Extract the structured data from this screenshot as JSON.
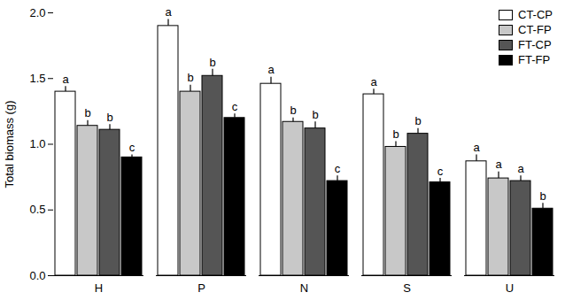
{
  "chart_data": {
    "type": "bar",
    "y_label": "Total biomass (g)",
    "categories": [
      "H",
      "P",
      "N",
      "S",
      "U"
    ],
    "series": [
      {
        "name": "CT-CP",
        "color": "#ffffff",
        "values": [
          1.4,
          1.9,
          1.46,
          1.38,
          0.87
        ],
        "error": [
          0.04,
          0.05,
          0.05,
          0.04,
          0.05
        ],
        "letters": [
          "a",
          "a",
          "a",
          "a",
          "a"
        ]
      },
      {
        "name": "CT-FP",
        "color": "#c8c8c8",
        "values": [
          1.14,
          1.4,
          1.17,
          0.98,
          0.74
        ],
        "error": [
          0.04,
          0.05,
          0.03,
          0.04,
          0.05
        ],
        "letters": [
          "b",
          "b",
          "b",
          "b",
          "a"
        ]
      },
      {
        "name": "FT-CP",
        "color": "#555555",
        "values": [
          1.11,
          1.52,
          1.12,
          1.08,
          0.72
        ],
        "error": [
          0.04,
          0.05,
          0.05,
          0.04,
          0.04
        ],
        "letters": [
          "b",
          "b",
          "b",
          "b",
          "a"
        ]
      },
      {
        "name": "FT-FP",
        "color": "#000000",
        "values": [
          0.9,
          1.2,
          0.72,
          0.71,
          0.51
        ],
        "error": [
          0.02,
          0.03,
          0.04,
          0.03,
          0.04
        ],
        "letters": [
          "c",
          "c",
          "c",
          "c",
          "b"
        ]
      }
    ],
    "ylim": [
      0,
      2.0
    ],
    "yticks": [
      {
        "value": 0,
        "label": "0.0"
      },
      {
        "value": 0.5,
        "label": "0.5"
      },
      {
        "value": 1,
        "label": "1.0"
      },
      {
        "value": 1.5,
        "label": "1.5"
      },
      {
        "value": 2,
        "label": "2.0"
      }
    ],
    "legend": "upper right"
  }
}
